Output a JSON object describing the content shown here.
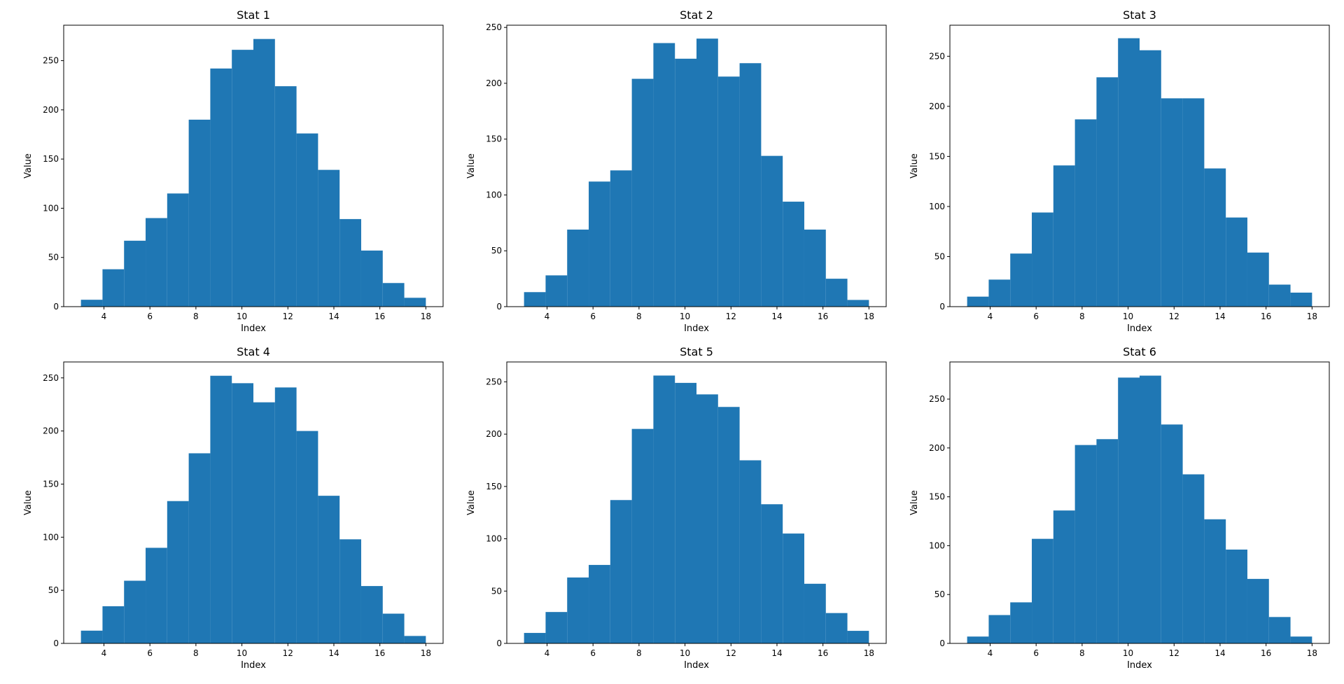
{
  "chart_data": [
    {
      "type": "bar",
      "title": "Stat 1",
      "xlabel": "Index",
      "ylabel": "Value",
      "bin_start": 3,
      "bin_end": 18,
      "bins": 16,
      "values": [
        7,
        38,
        67,
        90,
        115,
        190,
        242,
        261,
        272,
        224,
        176,
        139,
        89,
        57,
        24,
        9
      ],
      "xticks": [
        4,
        6,
        8,
        10,
        12,
        14,
        16,
        18
      ],
      "yticks": [
        0,
        50,
        100,
        150,
        200,
        250
      ],
      "ylim": [
        0,
        286
      ],
      "grid": false
    },
    {
      "type": "bar",
      "title": "Stat 2",
      "xlabel": "Index",
      "ylabel": "Value",
      "bin_start": 3,
      "bin_end": 18,
      "bins": 16,
      "values": [
        13,
        28,
        69,
        112,
        122,
        204,
        236,
        222,
        240,
        206,
        218,
        135,
        94,
        69,
        25,
        6
      ],
      "xticks": [
        4,
        6,
        8,
        10,
        12,
        14,
        16,
        18
      ],
      "yticks": [
        0,
        50,
        100,
        150,
        200,
        250
      ],
      "ylim": [
        0,
        252
      ],
      "grid": false
    },
    {
      "type": "bar",
      "title": "Stat 3",
      "xlabel": "Index",
      "ylabel": "Value",
      "bin_start": 3,
      "bin_end": 18,
      "bins": 16,
      "values": [
        10,
        27,
        53,
        94,
        141,
        187,
        229,
        268,
        256,
        208,
        208,
        138,
        89,
        54,
        22,
        14
      ],
      "xticks": [
        4,
        6,
        8,
        10,
        12,
        14,
        16,
        18
      ],
      "yticks": [
        0,
        50,
        100,
        150,
        200,
        250
      ],
      "ylim": [
        0,
        281
      ],
      "grid": false
    },
    {
      "type": "bar",
      "title": "Stat 4",
      "xlabel": "Index",
      "ylabel": "Value",
      "bin_start": 3,
      "bin_end": 18,
      "bins": 16,
      "values": [
        12,
        35,
        59,
        90,
        134,
        179,
        252,
        245,
        227,
        241,
        200,
        139,
        98,
        54,
        28,
        7
      ],
      "xticks": [
        4,
        6,
        8,
        10,
        12,
        14,
        16,
        18
      ],
      "yticks": [
        0,
        50,
        100,
        150,
        200,
        250
      ],
      "ylim": [
        0,
        265
      ],
      "grid": false
    },
    {
      "type": "bar",
      "title": "Stat 5",
      "xlabel": "Index",
      "ylabel": "Value",
      "bin_start": 3,
      "bin_end": 18,
      "bins": 16,
      "values": [
        10,
        30,
        63,
        75,
        137,
        205,
        256,
        249,
        238,
        226,
        175,
        133,
        105,
        57,
        29,
        12
      ],
      "xticks": [
        4,
        6,
        8,
        10,
        12,
        14,
        16,
        18
      ],
      "yticks": [
        0,
        50,
        100,
        150,
        200,
        250
      ],
      "ylim": [
        0,
        269
      ],
      "grid": false
    },
    {
      "type": "bar",
      "title": "Stat 6",
      "xlabel": "Index",
      "ylabel": "Value",
      "bin_start": 3,
      "bin_end": 18,
      "bins": 16,
      "values": [
        7,
        29,
        42,
        107,
        136,
        203,
        209,
        272,
        274,
        224,
        173,
        127,
        96,
        66,
        27,
        7
      ],
      "xticks": [
        4,
        6,
        8,
        10,
        12,
        14,
        16,
        18
      ],
      "yticks": [
        0,
        50,
        100,
        150,
        200,
        250
      ],
      "ylim": [
        0,
        288
      ],
      "grid": false
    }
  ],
  "colors": {
    "bar": "#1f77b4"
  }
}
